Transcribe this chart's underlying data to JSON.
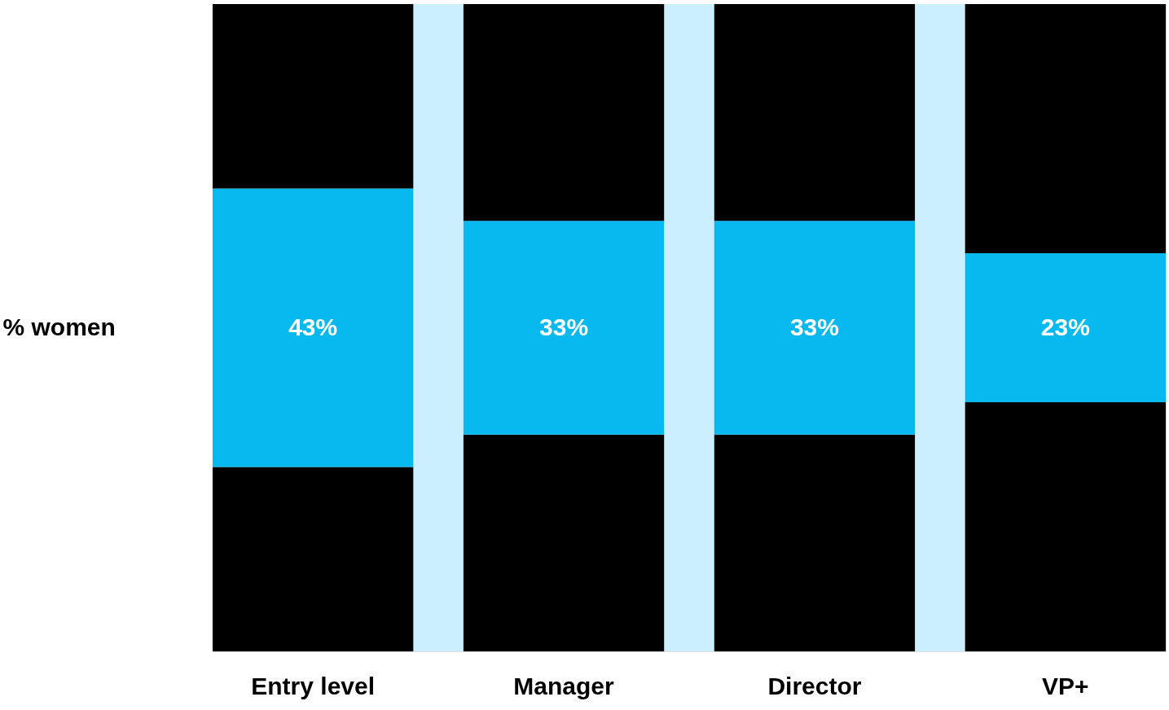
{
  "chart_data": {
    "type": "bar",
    "stacked": true,
    "ylabel": "% women",
    "bands": [
      {
        "axis": "y",
        "from": 0,
        "to": 100,
        "color": "#ccefff"
      }
    ],
    "categories": [
      "Entry level",
      "Manager",
      "Director",
      "VP+"
    ],
    "series": [
      {
        "color": "#000000",
        "values": [
          28.5,
          33.5,
          33.5,
          38.5
        ]
      },
      {
        "color": "#08b9ef",
        "values": [
          43,
          33,
          33,
          23
        ],
        "value_labels": [
          "43%",
          "33%",
          "33%",
          "23%"
        ]
      },
      {
        "color": "#000000",
        "values": [
          28.5,
          33.5,
          33.5,
          38.5
        ]
      }
    ]
  }
}
